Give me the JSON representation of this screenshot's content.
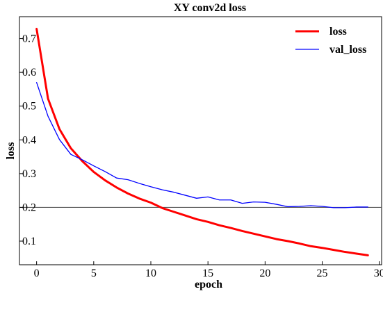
{
  "chart_data": {
    "type": "line",
    "title": "XY conv2d loss",
    "xlabel": "epoch",
    "ylabel": "loss",
    "xlim": [
      -1.5,
      30.2
    ],
    "ylim": [
      0.03,
      0.765
    ],
    "xticks": [
      0,
      5,
      10,
      15,
      20,
      25,
      30
    ],
    "xtick_labels": [
      "0",
      "5",
      "10",
      "15",
      "20",
      "25",
      "30"
    ],
    "yticks": [
      0.1,
      0.2,
      0.3,
      0.4,
      0.5,
      0.6,
      0.7
    ],
    "ytick_labels": [
      "0.1",
      "0.2",
      "0.3",
      "0.4",
      "0.5",
      "0.6",
      "0.7"
    ],
    "hline": 0.2,
    "grid": false,
    "legend_position": "top-right",
    "x": [
      0,
      1,
      2,
      3,
      4,
      5,
      6,
      7,
      8,
      9,
      10,
      11,
      12,
      13,
      14,
      15,
      16,
      17,
      18,
      19,
      20,
      21,
      22,
      23,
      24,
      25,
      26,
      27,
      28,
      29
    ],
    "series": [
      {
        "name": "loss",
        "color": "#ff0000",
        "values": [
          0.729,
          0.522,
          0.432,
          0.375,
          0.337,
          0.305,
          0.28,
          0.259,
          0.241,
          0.226,
          0.214,
          0.198,
          0.187,
          0.176,
          0.165,
          0.157,
          0.147,
          0.139,
          0.13,
          0.122,
          0.114,
          0.106,
          0.1,
          0.093,
          0.085,
          0.08,
          0.074,
          0.068,
          0.063,
          0.058
        ]
      },
      {
        "name": "val_loss",
        "color": "#0000ff",
        "values": [
          0.57,
          0.47,
          0.401,
          0.357,
          0.341,
          0.323,
          0.306,
          0.287,
          0.282,
          0.271,
          0.261,
          0.252,
          0.245,
          0.236,
          0.227,
          0.231,
          0.222,
          0.222,
          0.212,
          0.216,
          0.215,
          0.209,
          0.202,
          0.203,
          0.205,
          0.203,
          0.199,
          0.199,
          0.201,
          0.201
        ]
      }
    ]
  }
}
